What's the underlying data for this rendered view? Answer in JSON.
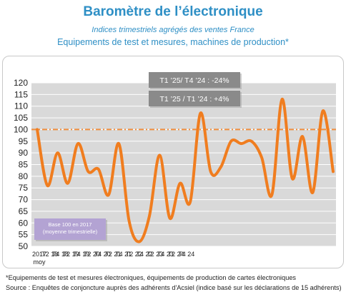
{
  "title": "Baromètre de l’électronique",
  "subtitle": "Indices trimestriels agrégés des ventes France",
  "subtitle2": "Equipements de test et mesures, machines de production*",
  "footnote1": "*Equipements de test et mesures électroniques, équipements de production de cartes électroniques",
  "footnote2": "Source : Enquêtes de conjoncture auprès des adhérents d'Acsiel (indice basé sur les déclarations de 15 adhérents)",
  "colors": {
    "line": "#F07D1F",
    "reference": "#F07D1F",
    "plot_bg": "#D9D9D9",
    "grid": "#FFFFFF",
    "title": "#2E8FC5",
    "callout_bg": "#8A8A8A",
    "base_box_bg": "#B3A3D3"
  },
  "chart_data": {
    "type": "line",
    "title": "",
    "xlabel": "",
    "ylabel": "",
    "ylim": [
      50,
      120
    ],
    "yticks": [
      50,
      55,
      60,
      65,
      70,
      75,
      80,
      85,
      90,
      95,
      100,
      105,
      110,
      115,
      120
    ],
    "grid": true,
    "reference_line": 100,
    "x_tick_labels": [
      "2017\nmoy",
      "T2 18",
      "T4 18",
      "T2 19",
      "T4 19",
      "T2 20",
      "T4 20",
      "T2 21",
      "T4 21",
      "T2 22",
      "T4 22",
      "T2 23",
      "T4 23",
      "T2 24",
      "T4 24"
    ],
    "x": [
      "2017 moy",
      "T1 18",
      "T2 18",
      "T3 18",
      "T4 18",
      "T1 19",
      "T2 19",
      "T3 19",
      "T4 19",
      "T1 20",
      "T2 20",
      "T3 20",
      "T4 20",
      "T1 21",
      "T2 21",
      "T3 21",
      "T4 21",
      "T1 22",
      "T2 22",
      "T3 22",
      "T4 22",
      "T1 23",
      "T2 23",
      "T3 23",
      "T4 23",
      "T1 24",
      "T2 24",
      "T3 24",
      "T4 24",
      "T1 25"
    ],
    "series": [
      {
        "values": [
          100,
          76,
          90,
          77,
          94,
          82,
          83,
          72,
          94,
          61,
          52,
          63,
          89,
          62,
          77,
          69,
          107,
          82,
          84,
          95,
          94,
          95,
          88,
          72,
          113,
          79,
          97,
          73,
          108,
          82
        ]
      }
    ],
    "annotations": [
      {
        "text": "T1 ’25/ T4 ’24 : -24%"
      },
      {
        "text": "T1 ’25 / T1 ’24 : +4%"
      },
      {
        "text": "Base 100 en 2017\n(moyenne trimestrielle)"
      }
    ]
  }
}
